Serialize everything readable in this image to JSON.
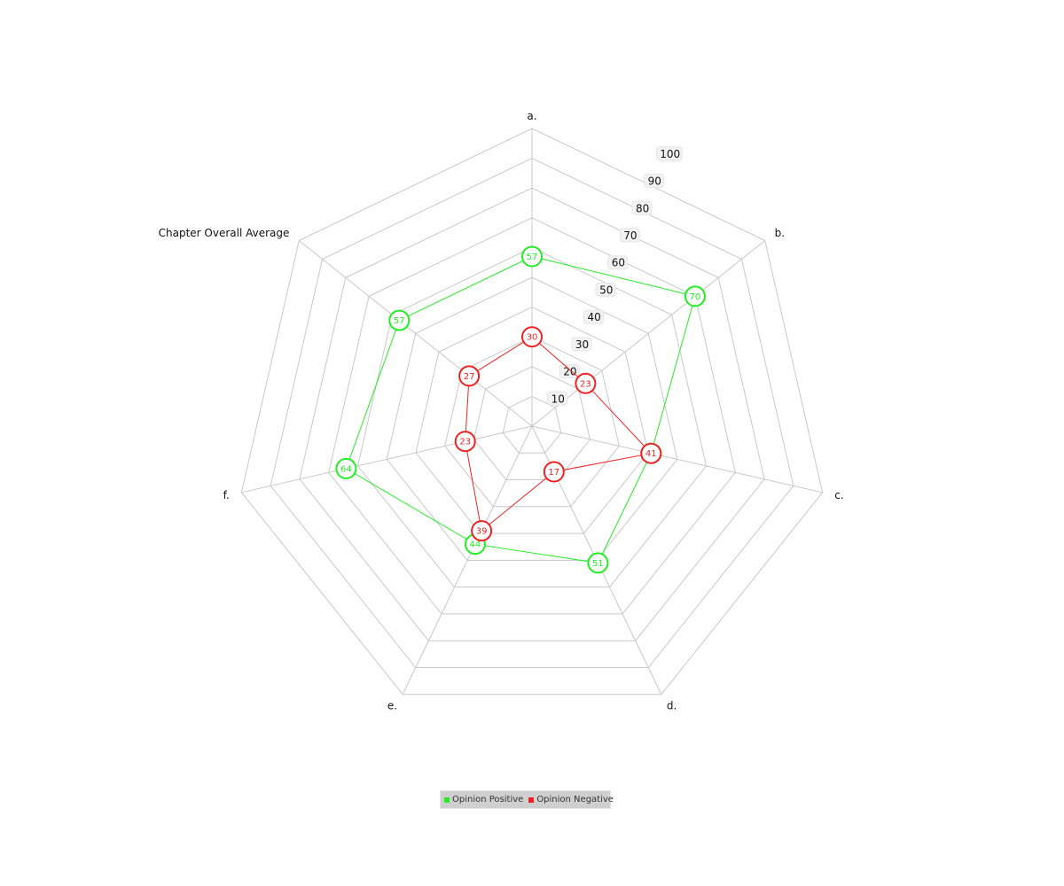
{
  "chart_data": {
    "type": "radar",
    "title": "",
    "axes": [
      "a.",
      "b.",
      "c.",
      "d.",
      "e.",
      "f.",
      "Chapter Overall Average"
    ],
    "rlim": [
      0,
      100
    ],
    "ticks": [
      10,
      20,
      30,
      40,
      50,
      60,
      70,
      80,
      90,
      100
    ],
    "grid": true,
    "legend_position": "bottom",
    "series": [
      {
        "name": "Opinion Positive",
        "color": "#22ee22",
        "values": [
          57,
          70,
          41,
          51,
          44,
          64,
          57
        ]
      },
      {
        "name": "Opinion Negative",
        "color": "#ee2222",
        "values": [
          30,
          23,
          41,
          17,
          39,
          23,
          27
        ]
      }
    ]
  }
}
